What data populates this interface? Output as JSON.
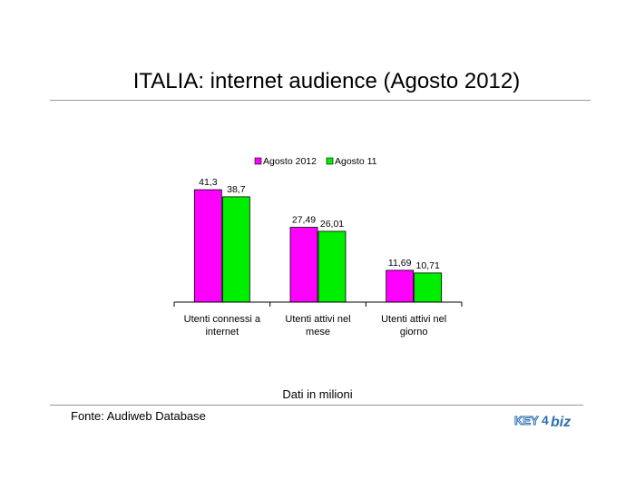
{
  "page": {
    "title": "ITALIA: internet audience (Agosto 2012)",
    "footnote": "Dati in milioni",
    "source": "Fonte: Audiweb Database",
    "logo_text": "KEY4biz"
  },
  "colors": {
    "series_1": "#ff00ff",
    "series_2": "#00ee00",
    "axis": "#000000",
    "rule": "#9a9a9a"
  },
  "chart_data": {
    "type": "bar",
    "title": "",
    "xlabel": "",
    "ylabel": "",
    "legend_position": "top",
    "grid": false,
    "ylim": [
      0,
      45
    ],
    "categories": [
      [
        "Utenti connessi a",
        "internet"
      ],
      [
        "Utenti attivi nel",
        "mese"
      ],
      [
        "Utenti attivi nel",
        "giorno"
      ]
    ],
    "series": [
      {
        "name": "Agosto 2012",
        "values": [
          41.3,
          27.49,
          11.69
        ],
        "labels": [
          "41,3",
          "27,49",
          "11,69"
        ]
      },
      {
        "name": "Agosto 11",
        "values": [
          38.7,
          26.01,
          10.71
        ],
        "labels": [
          "38,7",
          "26,01",
          "10,71"
        ]
      }
    ]
  }
}
